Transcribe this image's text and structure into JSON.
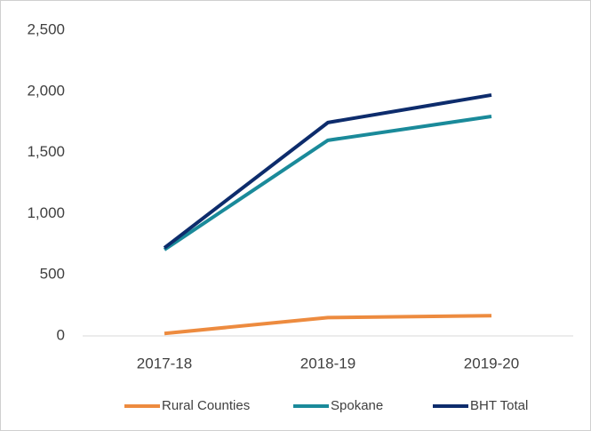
{
  "chart_data": {
    "type": "line",
    "categories": [
      "2017-18",
      "2018-19",
      "2019-20"
    ],
    "series": [
      {
        "name": "Rural Counties",
        "color": "#ED8B3F",
        "values": [
          20,
          150,
          165
        ]
      },
      {
        "name": "Spokane",
        "color": "#1A8A9A",
        "values": [
          705,
          1600,
          1795
        ]
      },
      {
        "name": "BHT Total",
        "color": "#0D2C6C",
        "values": [
          720,
          1745,
          1970
        ]
      }
    ],
    "ylim": [
      0,
      2500
    ],
    "yticks": [
      0,
      500,
      {
        "value": 1000,
        "label": "1,000"
      },
      {
        "value": 1500,
        "label": "1,500"
      },
      {
        "value": 2000,
        "label": "2,000"
      },
      {
        "value": 2500,
        "label": "2,500"
      }
    ],
    "grid": false,
    "legend": "bottom"
  }
}
